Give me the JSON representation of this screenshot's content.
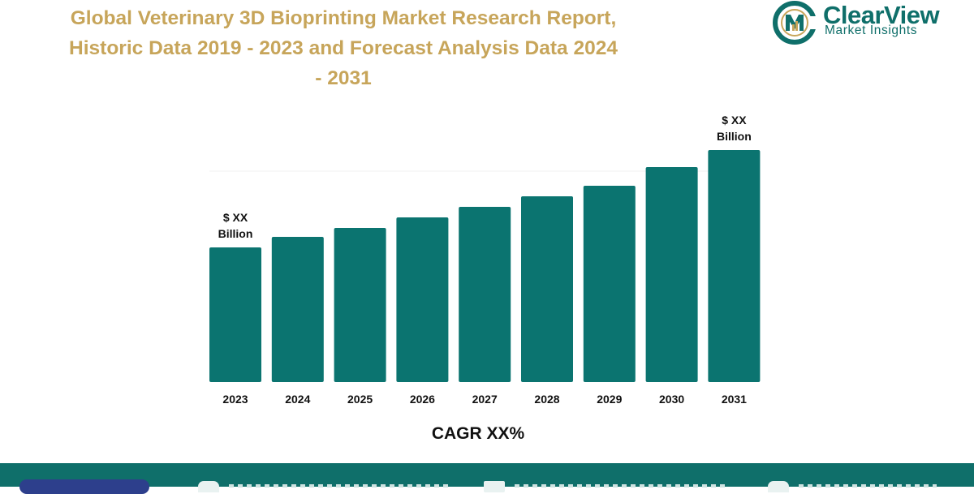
{
  "header": {
    "title_lines": [
      "Global Veterinary 3D Bioprinting Market Research Report,",
      "Historic Data 2019 - 2023 and Forecast Analysis Data 2024",
      "- 2031"
    ]
  },
  "logo": {
    "name": "ClearView",
    "tagline": "Market Insights"
  },
  "colors": {
    "title": "#c7a55a",
    "bar": "#0b7470",
    "brand": "#0f6f6a",
    "footer": "#0f6f6a"
  },
  "icons": [
    "clearview-logo-icon",
    "globe-icon",
    "envelope-icon",
    "phone-icon"
  ],
  "chart_data": {
    "type": "bar",
    "categories": [
      "2023",
      "2024",
      "2025",
      "2026",
      "2027",
      "2028",
      "2029",
      "2030",
      "2031"
    ],
    "values": [
      166,
      179,
      190,
      203,
      216,
      229,
      242,
      265,
      286
    ],
    "data_labels": [
      {
        "category": "2023",
        "lines": [
          "$ XX",
          "Billion"
        ]
      },
      {
        "category": "2031",
        "lines": [
          "$ XX",
          "Billion"
        ]
      }
    ],
    "caption": "CAGR XX%",
    "ylim": [
      0,
      300
    ],
    "grid": false,
    "legend": "none",
    "xlabel": "",
    "ylabel": ""
  }
}
